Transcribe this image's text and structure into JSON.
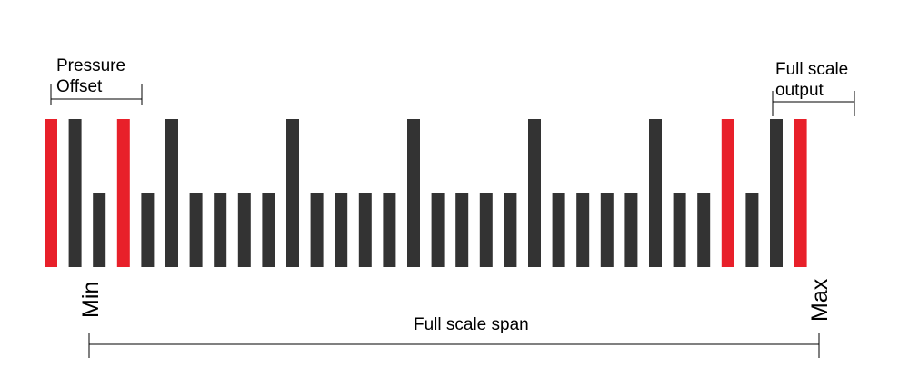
{
  "labels": {
    "pressure_offset_line1": "Pressure",
    "pressure_offset_line2": "Offset",
    "full_scale_output_line1": "Full scale",
    "full_scale_output_line2": "output",
    "min": "Min",
    "max": "Max",
    "full_scale_span": "Full scale span"
  },
  "colors": {
    "tick": "#333333",
    "marker": "#e8202a",
    "bracket": "#000000"
  },
  "scale": {
    "pattern": [
      "red-marker",
      "major",
      "minor",
      "red-marker",
      "minor",
      "major",
      "minor",
      "minor",
      "minor",
      "minor",
      "major",
      "minor",
      "minor",
      "minor",
      "minor",
      "major",
      "minor",
      "minor",
      "minor",
      "minor",
      "major",
      "minor",
      "minor",
      "minor",
      "minor",
      "major",
      "minor",
      "minor",
      "red-marker",
      "minor",
      "major",
      "red-marker"
    ]
  }
}
